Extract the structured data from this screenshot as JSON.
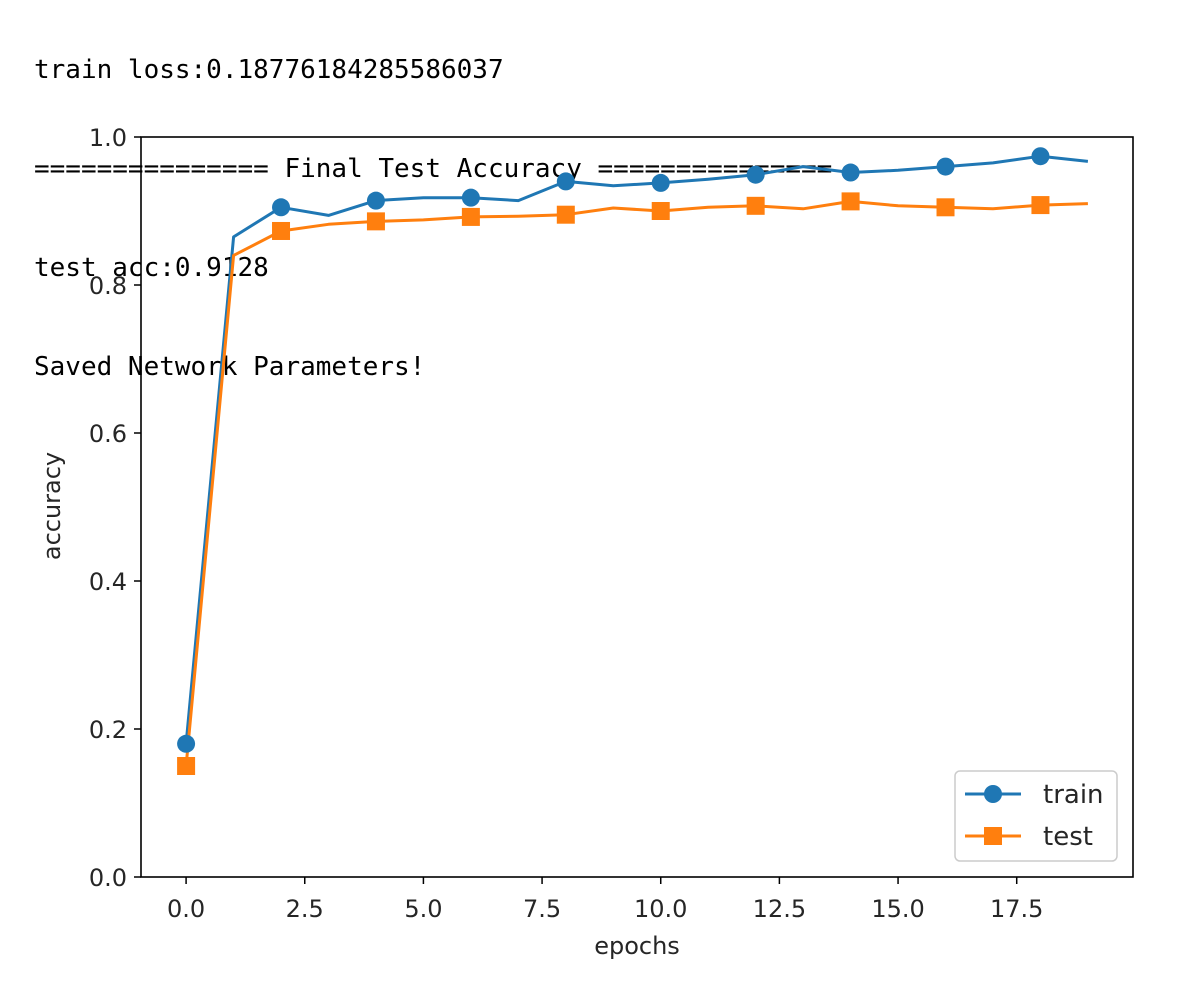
{
  "console": {
    "lines": [
      "train loss:0.18776184285586037",
      "=============== Final Test Accuracy ===============",
      "test acc:0.9128",
      "Saved Network Parameters!"
    ]
  },
  "chart_data": {
    "type": "line",
    "title": "",
    "xlabel": "epochs",
    "ylabel": "accuracy",
    "xlim": [
      -0.95,
      19.95
    ],
    "ylim": [
      0.0,
      1.0
    ],
    "xticks": [
      "0.0",
      "2.5",
      "5.0",
      "7.5",
      "10.0",
      "12.5",
      "15.0",
      "17.5"
    ],
    "yticks": [
      "0.0",
      "0.2",
      "0.4",
      "0.6",
      "0.8",
      "1.0"
    ],
    "grid": false,
    "legend_position": "lower-right",
    "x": [
      0,
      1,
      2,
      3,
      4,
      5,
      6,
      7,
      8,
      9,
      10,
      11,
      12,
      13,
      14,
      15,
      16,
      17,
      18,
      19
    ],
    "series": [
      {
        "name": "train",
        "color": "#1f77b4",
        "marker": "circle",
        "markevery": 2,
        "values": [
          0.18,
          0.865,
          0.905,
          0.894,
          0.914,
          0.918,
          0.918,
          0.914,
          0.94,
          0.934,
          0.938,
          0.943,
          0.949,
          0.96,
          0.952,
          0.955,
          0.96,
          0.965,
          0.974,
          0.967
        ]
      },
      {
        "name": "test",
        "color": "#ff7f0e",
        "marker": "square",
        "markevery": 2,
        "values": [
          0.15,
          0.84,
          0.873,
          0.882,
          0.886,
          0.888,
          0.892,
          0.893,
          0.895,
          0.904,
          0.9,
          0.905,
          0.907,
          0.903,
          0.913,
          0.907,
          0.905,
          0.903,
          0.908,
          0.91
        ]
      }
    ]
  }
}
